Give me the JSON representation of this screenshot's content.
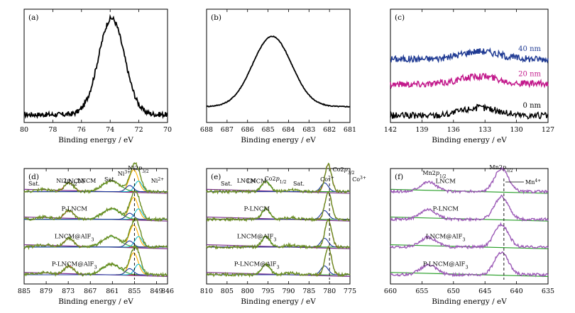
{
  "chart_data": [
    {
      "type": "line",
      "panel": "(a)",
      "xlabel": "Binding energy / eV",
      "xlim": [
        80,
        70
      ],
      "xticks": [
        80,
        78,
        76,
        74,
        72,
        70
      ],
      "peaks": [
        {
          "center": 73.9,
          "height": 0.85,
          "width": 0.9
        }
      ],
      "baseline": 0.07,
      "noise": 0.022,
      "ylim": [
        0,
        1
      ],
      "series": [
        {
          "color": "#000000",
          "offset": 0
        }
      ]
    },
    {
      "type": "line",
      "panel": "(b)",
      "xlabel": "Binding energy / eV",
      "xlim": [
        688,
        681
      ],
      "xticks": [
        688,
        687,
        686,
        685,
        684,
        683,
        682,
        681
      ],
      "peaks": [
        {
          "center": 684.8,
          "height": 0.62,
          "width": 0.95
        }
      ],
      "baseline": 0.14,
      "noise": 0.004,
      "ylim": [
        0,
        1
      ],
      "series": [
        {
          "color": "#000000",
          "offset": 0
        }
      ]
    },
    {
      "type": "line",
      "panel": "(c)",
      "xlabel": "Binding energy / eV",
      "xlim": [
        142,
        127
      ],
      "xticks": [
        142,
        139,
        136,
        133,
        130,
        127
      ],
      "peaks": [
        {
          "center": 133.5,
          "height": 0.07,
          "width": 1.8
        }
      ],
      "baseline": 0,
      "noise": 0.03,
      "ylim": [
        0,
        1
      ],
      "series": [
        {
          "name": "40 nm",
          "color": "#1f3a93",
          "offset": 0.56
        },
        {
          "name": "20 nm",
          "color": "#c2188b",
          "offset": 0.34
        },
        {
          "name": "0 nm",
          "color": "#000000",
          "offset": 0.06
        }
      ]
    },
    {
      "type": "line",
      "panel": "(d)",
      "xlabel": "Binding energy / eV",
      "xlim": [
        885,
        846
      ],
      "xticks": [
        885,
        879,
        873,
        867,
        861,
        855,
        849,
        846
      ],
      "dashed_line_x": 855,
      "peaks": [
        {
          "center": 872.8,
          "height": 0.2,
          "width": 1.3
        },
        {
          "center": 861.3,
          "height": 0.24,
          "width": 2.4
        },
        {
          "center": 855.2,
          "height": 0.5,
          "width": 1.2
        },
        {
          "center": 853.9,
          "height": 0.24,
          "width": 1.0
        },
        {
          "center": 879.5,
          "height": 0.05,
          "width": 2.0
        }
      ],
      "components": [
        {
          "color": "#d62728",
          "center": 872.8,
          "height": 0.2,
          "width": 1.3
        },
        {
          "color": "#2ca02c",
          "center": 861.3,
          "height": 0.24,
          "width": 2.4
        },
        {
          "color": "#ffb000",
          "center": 855.2,
          "height": 0.5,
          "width": 1.2
        },
        {
          "color": "#17becf",
          "center": 853.9,
          "height": 0.24,
          "width": 1.0
        },
        {
          "color": "#1f3aa0",
          "center": 856.3,
          "height": 0.14,
          "width": 1.0
        }
      ],
      "envelope_color": "#6b8e23",
      "background_color": "#7b2d8e",
      "samples": [
        "LNCM",
        "P-LNCM",
        "LNCM@AlF3",
        "P-LNCM@AlF3"
      ],
      "annotations": [
        "Sat.",
        "Ni2p1/2",
        "LNCM",
        "Sat.",
        "Ni3+",
        "Ni2p3/2",
        "Ni2+"
      ]
    },
    {
      "type": "line",
      "panel": "(e)",
      "xlabel": "Binding energy / eV",
      "xlim": [
        810,
        775
      ],
      "xticks": [
        810,
        805,
        800,
        795,
        790,
        785,
        780,
        775
      ],
      "dashed_line_x": 780,
      "peaks": [
        {
          "center": 795.5,
          "height": 0.24,
          "width": 1.0
        },
        {
          "center": 780.3,
          "height": 0.62,
          "width": 0.8
        },
        {
          "center": 789.5,
          "height": 0.04,
          "width": 1.5
        }
      ],
      "components": [
        {
          "color": "#2ca02c",
          "center": 795.5,
          "height": 0.24,
          "width": 1.0
        },
        {
          "color": "#d62728",
          "center": 780.3,
          "height": 0.62,
          "width": 0.8
        },
        {
          "color": "#1f3aa0",
          "center": 781.2,
          "height": 0.2,
          "width": 0.9
        }
      ],
      "envelope_color": "#6b8e23",
      "background_color": "#7b2d8e",
      "samples": [
        "LNCM",
        "P-LNCM",
        "LNCM@AlF3",
        "P-LNCM@AlF3"
      ],
      "annotations": [
        "Sat.",
        "LNCM",
        "Co2p1/2",
        "Sat.",
        "Co2p3/2",
        "Co2+",
        "Co3+"
      ]
    },
    {
      "type": "line",
      "panel": "(f)",
      "xlabel": "Binding energy / eV",
      "xlim": [
        660,
        635
      ],
      "xticks": [
        660,
        655,
        650,
        645,
        640,
        635
      ],
      "dashed_line_x": 642,
      "peaks": [
        {
          "center": 654.0,
          "height": 0.22,
          "width": 1.3
        },
        {
          "center": 642.4,
          "height": 0.52,
          "width": 1.1
        }
      ],
      "components": [],
      "envelope_color": "#9b59b6",
      "background_color": "#2ca02c",
      "samples": [
        "LNCM",
        "P-LNCM",
        "LNCM@AlF3",
        "P-LNCM@AlF3"
      ],
      "annotations": [
        "Mn2p1/2",
        "Mn2p3/2",
        "Mn4+"
      ]
    }
  ],
  "labels": {
    "panel_a": "(a)",
    "panel_b": "(b)",
    "panel_c": "(c)",
    "panel_d": "(d)",
    "panel_e": "(e)",
    "panel_f": "(f)",
    "xlabel": "Binding energy / eV",
    "depth_40": "40 nm",
    "depth_20": "20 nm",
    "depth_0": "0 nm",
    "sample_lncm": "LNCM",
    "sample_plncm": "P-LNCM",
    "sample_lncm_alf3": "LNCM@AlF",
    "sample_plncm_alf3": "P-LNCM@AlF",
    "sub3": "3",
    "sat": "Sat.",
    "ni2p": "Ni2",
    "co2p": "Co2",
    "mn2p": "Mn2",
    "p": "p",
    "half": "1/2",
    "threehalf": "3/2",
    "ni3": "Ni",
    "ni3_sup": "3+",
    "ni2": "Ni",
    "ni2_sup": "2+",
    "co2": "Co",
    "co2_sup": "2+",
    "co3": "Co",
    "co3_sup": "3+",
    "mn4": "Mn",
    "mn4_sup": "4+"
  }
}
